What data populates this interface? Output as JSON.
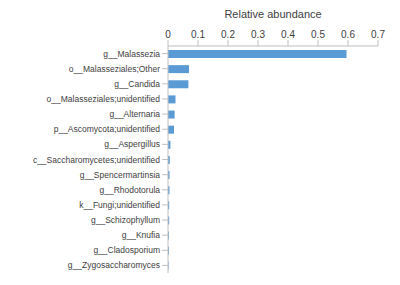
{
  "chart_data": {
    "type": "bar",
    "orientation": "horizontal",
    "xlabel": "Relative abundance",
    "categories": [
      "g__Malassezia",
      "o__Malasseziales;Other",
      "g__Candida",
      "o__Malasseziales;unidentified",
      "g__Alternaria",
      "p__Ascomycota;unidentified",
      "g__Aspergillus",
      "c__Saccharomycetes;unidentified",
      "g__Spencermartinsia",
      "g__Rhodotorula",
      "k__Fungi;unidentified",
      "g__Schizophyllum",
      "g__Knufia",
      "g__Cladosporium",
      "g__Zygosaccharomyces"
    ],
    "values": [
      0.595,
      0.07,
      0.068,
      0.025,
      0.022,
      0.02,
      0.008,
      0.006,
      0.005,
      0.005,
      0.004,
      0.004,
      0.003,
      0.003,
      0.002
    ],
    "color": "#5b9bd5",
    "xlim": [
      0,
      0.7
    ],
    "xticks": [
      0,
      0.1,
      0.2,
      0.3,
      0.4,
      0.5,
      0.6,
      0.7
    ],
    "grid": false
  }
}
